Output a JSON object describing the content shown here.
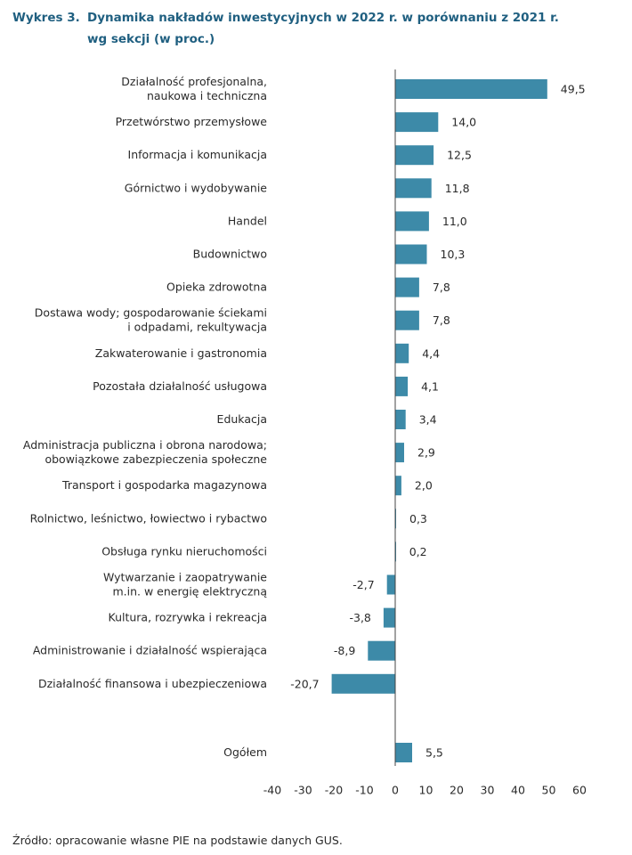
{
  "header": {
    "figure_label": "Wykres 3.",
    "title_line1": "Dynamika nakładów inwestycyjnych w 2022 r. w porównaniu z 2021 r.",
    "title_line2": "wg sekcji (w proc.)"
  },
  "footer": {
    "source": "Źródło: opracowanie własne PIE na podstawie danych GUS."
  },
  "colors": {
    "bar": "#3d8aa8",
    "title": "#1f5f80",
    "axis": "#444444"
  },
  "chart_data": {
    "type": "bar",
    "orientation": "horizontal",
    "title": "Dynamika nakładów inwestycyjnych w 2022 r. w porównaniu z 2021 r. wg sekcji (w proc.)",
    "xlabel": "",
    "ylabel": "",
    "xlim": [
      -40,
      60
    ],
    "xticks": [
      -40,
      -30,
      -20,
      -10,
      0,
      10,
      20,
      30,
      40,
      50,
      60
    ],
    "tick_labels": [
      "-40",
      "-30",
      "-20",
      "-10",
      "0",
      "10",
      "20",
      "30",
      "40",
      "50",
      "60"
    ],
    "grid": false,
    "bars": [
      {
        "label": [
          "Działalność profesjonalna,",
          "naukowa i techniczna"
        ],
        "value": 49.5,
        "value_label": "49,5"
      },
      {
        "label": [
          "Przetwórstwo przemysłowe"
        ],
        "value": 14.0,
        "value_label": "14,0"
      },
      {
        "label": [
          "Informacja i komunikacja"
        ],
        "value": 12.5,
        "value_label": "12,5"
      },
      {
        "label": [
          "Górnictwo i wydobywanie"
        ],
        "value": 11.8,
        "value_label": "11,8"
      },
      {
        "label": [
          "Handel"
        ],
        "value": 11.0,
        "value_label": "11,0"
      },
      {
        "label": [
          "Budownictwo"
        ],
        "value": 10.3,
        "value_label": "10,3"
      },
      {
        "label": [
          "Opieka zdrowotna"
        ],
        "value": 7.8,
        "value_label": "7,8"
      },
      {
        "label": [
          "Dostawa wody; gospodarowanie ściekami",
          "i odpadami, rekultywacja"
        ],
        "value": 7.8,
        "value_label": "7,8"
      },
      {
        "label": [
          "Zakwaterowanie i gastronomia"
        ],
        "value": 4.4,
        "value_label": "4,4"
      },
      {
        "label": [
          "Pozostała działalność usługowa"
        ],
        "value": 4.1,
        "value_label": "4,1"
      },
      {
        "label": [
          "Edukacja"
        ],
        "value": 3.4,
        "value_label": "3,4"
      },
      {
        "label": [
          "Administracja publiczna i obrona narodowa;",
          "obowiązkowe zabezpieczenia społeczne"
        ],
        "value": 2.9,
        "value_label": "2,9"
      },
      {
        "label": [
          "Transport i gospodarka magazynowa"
        ],
        "value": 2.0,
        "value_label": "2,0"
      },
      {
        "label": [
          "Rolnictwo, leśnictwo, łowiectwo i rybactwo"
        ],
        "value": 0.3,
        "value_label": "0,3"
      },
      {
        "label": [
          "Obsługa rynku nieruchomości"
        ],
        "value": 0.2,
        "value_label": "0,2"
      },
      {
        "label": [
          "Wytwarzanie i zaopatrywanie",
          "m.in. w energię elektryczną"
        ],
        "value": -2.7,
        "value_label": "-2,7"
      },
      {
        "label": [
          "Kultura, rozrywka i rekreacja"
        ],
        "value": -3.8,
        "value_label": "-3,8"
      },
      {
        "label": [
          "Administrowanie i działalność wspierająca"
        ],
        "value": -8.9,
        "value_label": "-8,9"
      },
      {
        "label": [
          "Działalność finansowa i ubezpieczeniowa"
        ],
        "value": -20.7,
        "value_label": "-20,7"
      },
      {
        "label": [
          "Ogółem"
        ],
        "value": 5.5,
        "value_label": "5,5"
      }
    ]
  }
}
